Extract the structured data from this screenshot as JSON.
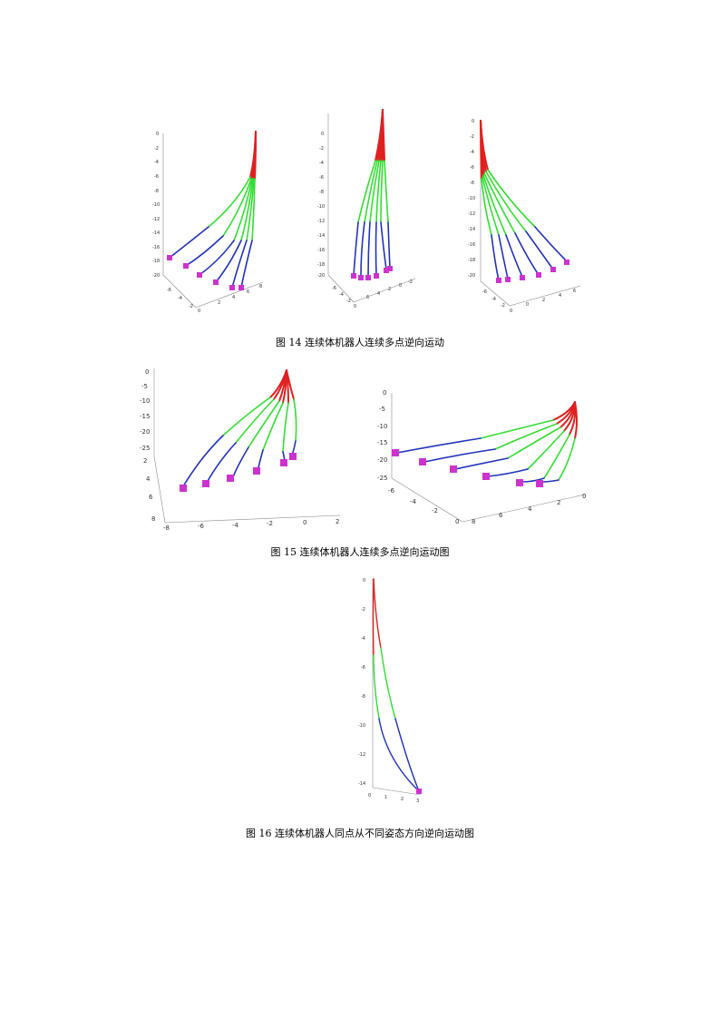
{
  "captions": {
    "fig14": "图 14 连续体机器人连续多点逆向运动",
    "fig15": "图 15 连续体机器人连续多点逆向运动图",
    "fig16": "图 16 连续体机器人同点从不同姿态方向逆向运动图"
  },
  "colors": {
    "section1": "#e02020",
    "section2": "#33dd33",
    "section3": "#2233bb",
    "target": "#cc33cc",
    "axis": "#888888"
  },
  "fig14a": {
    "z_ticks": [
      "0",
      "-2",
      "-4",
      "-6",
      "-8",
      "-10",
      "-12",
      "-14",
      "-16",
      "-18",
      "-20"
    ],
    "a_ticks": [
      "-6",
      "-4",
      "-2",
      "0"
    ],
    "b_ticks": [
      "2",
      "4",
      "6",
      "8"
    ]
  },
  "fig14b": {
    "z_ticks": [
      "0",
      "-2",
      "-4",
      "-6",
      "-8",
      "-10",
      "-12",
      "-14",
      "-16",
      "-18",
      "-20"
    ],
    "a_ticks": [
      "-6",
      "-4",
      "-2",
      "0"
    ],
    "b_ticks": [
      "6",
      "4",
      "2",
      "0",
      "-2"
    ]
  },
  "fig14c": {
    "z_ticks": [
      "0",
      "-2",
      "-4",
      "-6",
      "-8",
      "-10",
      "-12",
      "-14",
      "-16",
      "-18",
      "-20"
    ],
    "a_ticks": [
      "-6",
      "-4",
      "-2",
      "0"
    ],
    "b_ticks": [
      "0",
      "2",
      "4",
      "6"
    ]
  },
  "fig15a": {
    "z_ticks": [
      "0",
      "-5",
      "-10",
      "-15",
      "-20",
      "-25"
    ],
    "y_ticks": [
      "2",
      "4",
      "6",
      "8"
    ],
    "x_ticks": [
      "-8",
      "-6",
      "-4",
      "-2",
      "0",
      "2"
    ]
  },
  "fig15b": {
    "z_ticks": [
      "0",
      "-5",
      "-10",
      "-15",
      "-20",
      "-25"
    ],
    "y_ticks": [
      "-6",
      "-4",
      "-2",
      "0"
    ],
    "x_ticks": [
      "8",
      "6",
      "4",
      "2",
      "0"
    ]
  },
  "fig16": {
    "z_ticks": [
      "0",
      "-2",
      "-4",
      "-6",
      "-8",
      "-10",
      "-12",
      "-14"
    ],
    "x_ticks": [
      "0",
      "1",
      "2",
      "3"
    ]
  }
}
